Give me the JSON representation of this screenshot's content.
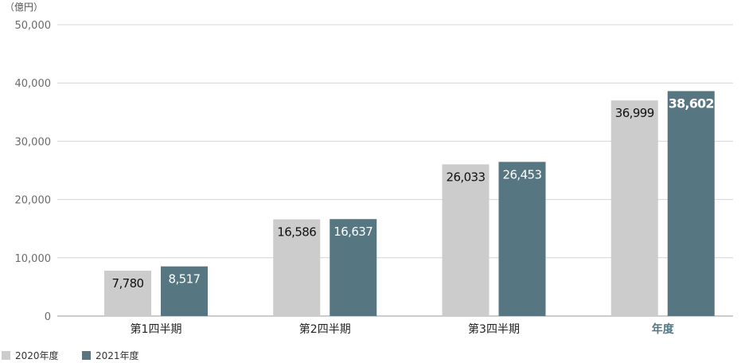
{
  "chart_data": {
    "type": "bar",
    "unit_label": "（億円）",
    "categories": [
      "第1四半期",
      "第2四半期",
      "第3四半期",
      "年度"
    ],
    "highlight_category": "年度",
    "series": [
      {
        "name": "2020年度",
        "values": [
          7780,
          16586,
          26033,
          36999
        ],
        "labels": [
          "7,780",
          "16,586",
          "26,033",
          "36,999"
        ]
      },
      {
        "name": "2021年度",
        "values": [
          8517,
          16637,
          26453,
          38602
        ],
        "labels": [
          "8,517",
          "16,637",
          "26,453",
          "38,602"
        ]
      }
    ],
    "y_ticks": [
      0,
      10000,
      20000,
      30000,
      40000,
      50000
    ],
    "y_tick_labels": [
      "0",
      "10,000",
      "20,000",
      "30,000",
      "40,000",
      "50,000"
    ],
    "ylim": [
      0,
      50000
    ],
    "grid": true,
    "legend_position": "bottom-left"
  },
  "colors": {
    "series_2020": "#cccccc",
    "series_2021": "#567682",
    "grid": "#d4d4d4",
    "axis": "#9a9a9a",
    "highlight_text": "#567682"
  }
}
